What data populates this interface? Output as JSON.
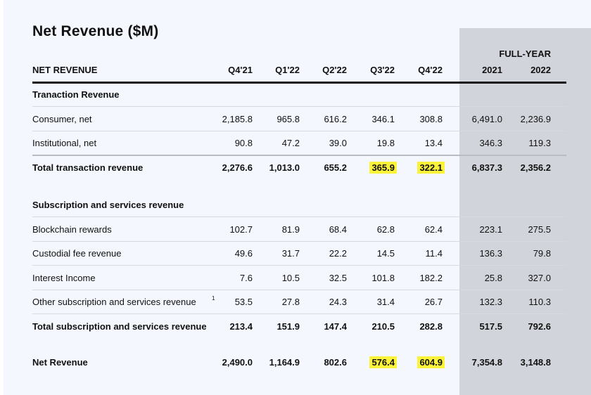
{
  "title": "Net Revenue ($M)",
  "full_year_label": "FULL-YEAR",
  "header": {
    "label": "NET REVENUE",
    "columns": [
      "Q4'21",
      "Q1'22",
      "Q2'22",
      "Q3'22",
      "Q4'22",
      "2021",
      "2022"
    ]
  },
  "highlight_color": "#fbf33a",
  "sections": {
    "transaction": {
      "title": "Tranaction Revenue",
      "rows": [
        {
          "label": "Consumer, net",
          "values": [
            "2,185.8",
            "965.8",
            "616.2",
            "346.1",
            "308.8",
            "6,491.0",
            "2,236.9"
          ]
        },
        {
          "label": "Institutional, net",
          "values": [
            "90.8",
            "47.2",
            "39.0",
            "19.8",
            "13.4",
            "346.3",
            "119.3"
          ]
        }
      ],
      "total": {
        "label": "Total transaction revenue",
        "values": [
          "2,276.6",
          "1,013.0",
          "655.2",
          "365.9",
          "322.1",
          "6,837.3",
          "2,356.2"
        ]
      }
    },
    "subscription": {
      "title": "Subscription and services revenue",
      "rows": [
        {
          "label": "Blockchain rewards",
          "values": [
            "102.7",
            "81.9",
            "68.4",
            "62.8",
            "62.4",
            "223.1",
            "275.5"
          ]
        },
        {
          "label": "Custodial fee revenue",
          "values": [
            "49.6",
            "31.7",
            "22.2",
            "14.5",
            "11.4",
            "136.3",
            "79.8"
          ]
        },
        {
          "label": "Interest Income",
          "values": [
            "7.6",
            "10.5",
            "32.5",
            "101.8",
            "182.2",
            "25.8",
            "327.0"
          ]
        },
        {
          "label": "Other subscription and services revenue",
          "footnote": "1",
          "values": [
            "53.5",
            "27.8",
            "24.3",
            "31.4",
            "26.7",
            "132.3",
            "110.3"
          ]
        }
      ],
      "total": {
        "label": "Total subscription and services revenue",
        "values": [
          "213.4",
          "151.9",
          "147.4",
          "210.5",
          "282.8",
          "517.5",
          "792.6"
        ]
      }
    }
  },
  "net_revenue": {
    "label": "Net Revenue",
    "values": [
      "2,490.0",
      "1,164.9",
      "802.6",
      "576.4",
      "604.9",
      "7,354.8",
      "3,148.8"
    ]
  }
}
